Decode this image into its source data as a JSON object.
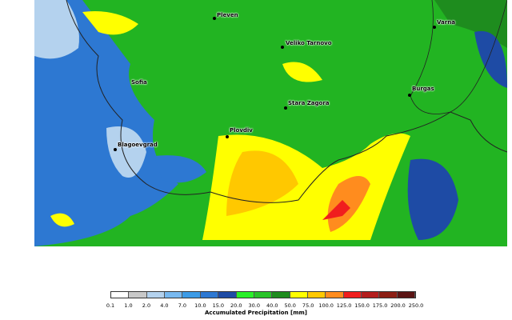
{
  "map": {
    "cities": [
      {
        "name": "Pleven"
      },
      {
        "name": "Veliko Tarnovo"
      },
      {
        "name": "Varna"
      },
      {
        "name": "Sofia"
      },
      {
        "name": "Burgas"
      },
      {
        "name": "Stara Zagora"
      },
      {
        "name": "Plovdiv"
      },
      {
        "name": "Blagoevgrad"
      }
    ]
  },
  "legend": {
    "title": "Accumulated Precipitation [mm]",
    "ticks": [
      "0.1",
      "1.0",
      "2.0",
      "4.0",
      "7.0",
      "10.0",
      "15.0",
      "20.0",
      "30.0",
      "40.0",
      "50.0",
      "75.0",
      "100.0",
      "125.0",
      "150.0",
      "175.0",
      "200.0",
      "250.0"
    ],
    "colors": [
      "#ffffff",
      "#c8c8c8",
      "#b4d2ee",
      "#78b9f0",
      "#3c9be6",
      "#2d78d2",
      "#1e4ba5",
      "#28f028",
      "#28c328",
      "#1e8c1e",
      "#ffff00",
      "#ffc800",
      "#ff8c1e",
      "#f01e1e",
      "#b41e1e",
      "#8c1e14",
      "#5a1414"
    ]
  }
}
